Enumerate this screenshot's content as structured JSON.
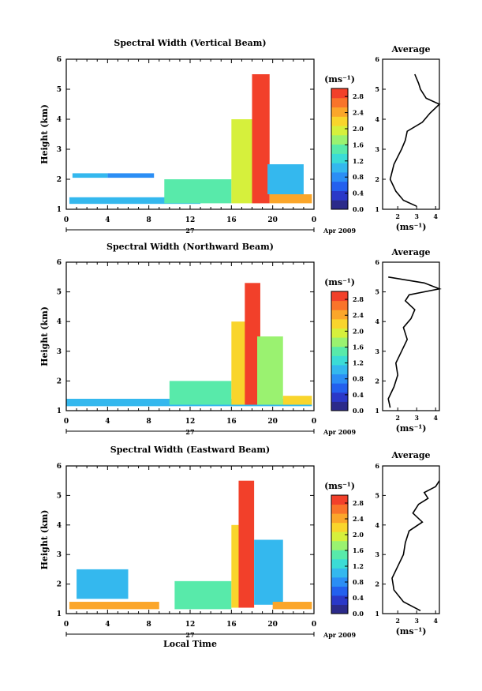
{
  "chart_data": [
    {
      "type": "heatmap",
      "title": "Spectral Width (Vertical Beam)",
      "ylabel": "Height (km)",
      "xlabel": "",
      "x_ticks": [
        "0",
        "4",
        "8",
        "12",
        "16",
        "20",
        "0"
      ],
      "y_ticks": [
        "1",
        "2",
        "3",
        "4",
        "5",
        "6"
      ],
      "xlim": [
        0,
        24
      ],
      "ylim": [
        1,
        6
      ],
      "date_row": {
        "day": "27",
        "month_year": "Apr 2009"
      },
      "colorbar": {
        "unit": "(ms⁻¹)",
        "min": 0,
        "max": 3.0,
        "labels": [
          "0.0",
          "0.4",
          "0.8",
          "1.2",
          "1.6",
          "2.0",
          "2.4",
          "2.8"
        ]
      },
      "regions": [
        {
          "t": [
            0.3,
            13.0
          ],
          "h": [
            1.18,
            1.4
          ],
          "v": 0.9
        },
        {
          "t": [
            0.6,
            4.0
          ],
          "h": [
            2.05,
            2.2
          ],
          "v": 1.0
        },
        {
          "t": [
            4.0,
            8.5
          ],
          "h": [
            2.05,
            2.2
          ],
          "v": 0.8
        },
        {
          "t": [
            9.5,
            16.0
          ],
          "h": [
            1.2,
            2.0
          ],
          "v": 1.5
        },
        {
          "t": [
            16.0,
            18.8
          ],
          "h": [
            1.2,
            4.0
          ],
          "v": 2.1
        },
        {
          "t": [
            18.0,
            19.7
          ],
          "h": [
            1.2,
            5.5
          ],
          "v": 3.0
        },
        {
          "t": [
            19.7,
            23.8
          ],
          "h": [
            1.2,
            1.5
          ],
          "v": 2.6
        },
        {
          "t": [
            19.5,
            23.0
          ],
          "h": [
            1.5,
            2.5
          ],
          "v": 1.0
        }
      ],
      "average": {
        "title": "Average",
        "xlabel": "(ms⁻¹)",
        "x_ticks": [
          "2",
          "3",
          "4"
        ],
        "xlim": [
          1.2,
          4.2
        ],
        "h": [
          1.1,
          1.3,
          1.6,
          2.0,
          2.5,
          3.0,
          3.3,
          3.6,
          3.9,
          4.2,
          4.5,
          4.7,
          5.0,
          5.2,
          5.5
        ],
        "x": [
          3.0,
          2.3,
          1.9,
          1.6,
          1.8,
          2.2,
          2.4,
          2.5,
          3.3,
          3.7,
          4.3,
          3.5,
          3.2,
          3.1,
          2.9
        ]
      }
    },
    {
      "type": "heatmap",
      "title": "Spectral Width (Northward Beam)",
      "ylabel": "Height (km)",
      "xlabel": "",
      "x_ticks": [
        "0",
        "4",
        "8",
        "12",
        "16",
        "20",
        "0"
      ],
      "y_ticks": [
        "1",
        "2",
        "3",
        "4",
        "5",
        "6"
      ],
      "xlim": [
        0,
        24
      ],
      "ylim": [
        1,
        6
      ],
      "date_row": {
        "day": "27",
        "month_year": "Apr 2009"
      },
      "colorbar": {
        "unit": "(ms⁻¹)",
        "min": 0,
        "max": 3.0,
        "labels": [
          "0.0",
          "0.4",
          "0.8",
          "1.2",
          "1.6",
          "2.0",
          "2.4",
          "2.8"
        ]
      },
      "regions": [
        {
          "t": [
            0.0,
            23.8
          ],
          "h": [
            1.15,
            1.4
          ],
          "v": 1.0
        },
        {
          "t": [
            10.0,
            16.0
          ],
          "h": [
            1.2,
            2.0
          ],
          "v": 1.6
        },
        {
          "t": [
            16.0,
            17.5
          ],
          "h": [
            1.2,
            4.0
          ],
          "v": 2.3
        },
        {
          "t": [
            17.3,
            18.8
          ],
          "h": [
            1.2,
            5.3
          ],
          "v": 3.0
        },
        {
          "t": [
            18.5,
            21.0
          ],
          "h": [
            1.2,
            3.5
          ],
          "v": 1.7
        },
        {
          "t": [
            21.0,
            23.8
          ],
          "h": [
            1.2,
            1.5
          ],
          "v": 2.2
        }
      ],
      "average": {
        "title": "Average",
        "xlabel": "(ms⁻¹)",
        "x_ticks": [
          "2",
          "3",
          "4"
        ],
        "xlim": [
          1.2,
          4.2
        ],
        "h": [
          1.1,
          1.4,
          1.8,
          2.2,
          2.6,
          3.0,
          3.4,
          3.8,
          4.1,
          4.4,
          4.7,
          4.9,
          5.1,
          5.3,
          5.5
        ],
        "x": [
          1.6,
          1.5,
          1.8,
          2.0,
          1.9,
          2.2,
          2.5,
          2.3,
          2.7,
          2.9,
          2.4,
          2.6,
          4.3,
          3.4,
          1.5
        ]
      }
    },
    {
      "type": "heatmap",
      "title": "Spectral Width (Eastward Beam)",
      "ylabel": "Height (km)",
      "xlabel": "Local Time",
      "x_ticks": [
        "0",
        "4",
        "8",
        "12",
        "16",
        "20",
        "0"
      ],
      "y_ticks": [
        "1",
        "2",
        "3",
        "4",
        "5",
        "6"
      ],
      "xlim": [
        0,
        24
      ],
      "ylim": [
        1,
        6
      ],
      "date_row": {
        "day": "27",
        "month_year": "Apr 2009"
      },
      "colorbar": {
        "unit": "(ms⁻¹)",
        "min": 0,
        "max": 3.0,
        "labels": [
          "0.0",
          "0.4",
          "0.8",
          "1.2",
          "1.6",
          "2.0",
          "2.4",
          "2.8"
        ]
      },
      "regions": [
        {
          "t": [
            0.3,
            9.0
          ],
          "h": [
            1.15,
            1.4
          ],
          "v": 2.6
        },
        {
          "t": [
            1.0,
            6.0
          ],
          "h": [
            1.5,
            2.5
          ],
          "v": 0.9
        },
        {
          "t": [
            10.5,
            16.0
          ],
          "h": [
            1.15,
            2.1
          ],
          "v": 1.6
        },
        {
          "t": [
            16.0,
            17.2
          ],
          "h": [
            1.2,
            4.0
          ],
          "v": 2.2
        },
        {
          "t": [
            16.7,
            18.2
          ],
          "h": [
            1.2,
            5.5
          ],
          "v": 3.0
        },
        {
          "t": [
            18.2,
            21.0
          ],
          "h": [
            1.3,
            3.5
          ],
          "v": 1.0
        },
        {
          "t": [
            20.0,
            23.8
          ],
          "h": [
            1.15,
            1.4
          ],
          "v": 2.5
        }
      ],
      "average": {
        "title": "Average",
        "xlabel": "(ms⁻¹)",
        "x_ticks": [
          "2",
          "3",
          "4"
        ],
        "xlim": [
          1.2,
          4.2
        ],
        "h": [
          1.1,
          1.4,
          1.8,
          2.2,
          2.6,
          3.0,
          3.4,
          3.8,
          4.1,
          4.4,
          4.7,
          4.9,
          5.1,
          5.3,
          5.5
        ],
        "x": [
          3.2,
          2.3,
          1.8,
          1.7,
          2.0,
          2.3,
          2.4,
          2.6,
          3.3,
          2.8,
          3.1,
          3.6,
          3.4,
          4.0,
          4.2
        ]
      }
    }
  ]
}
